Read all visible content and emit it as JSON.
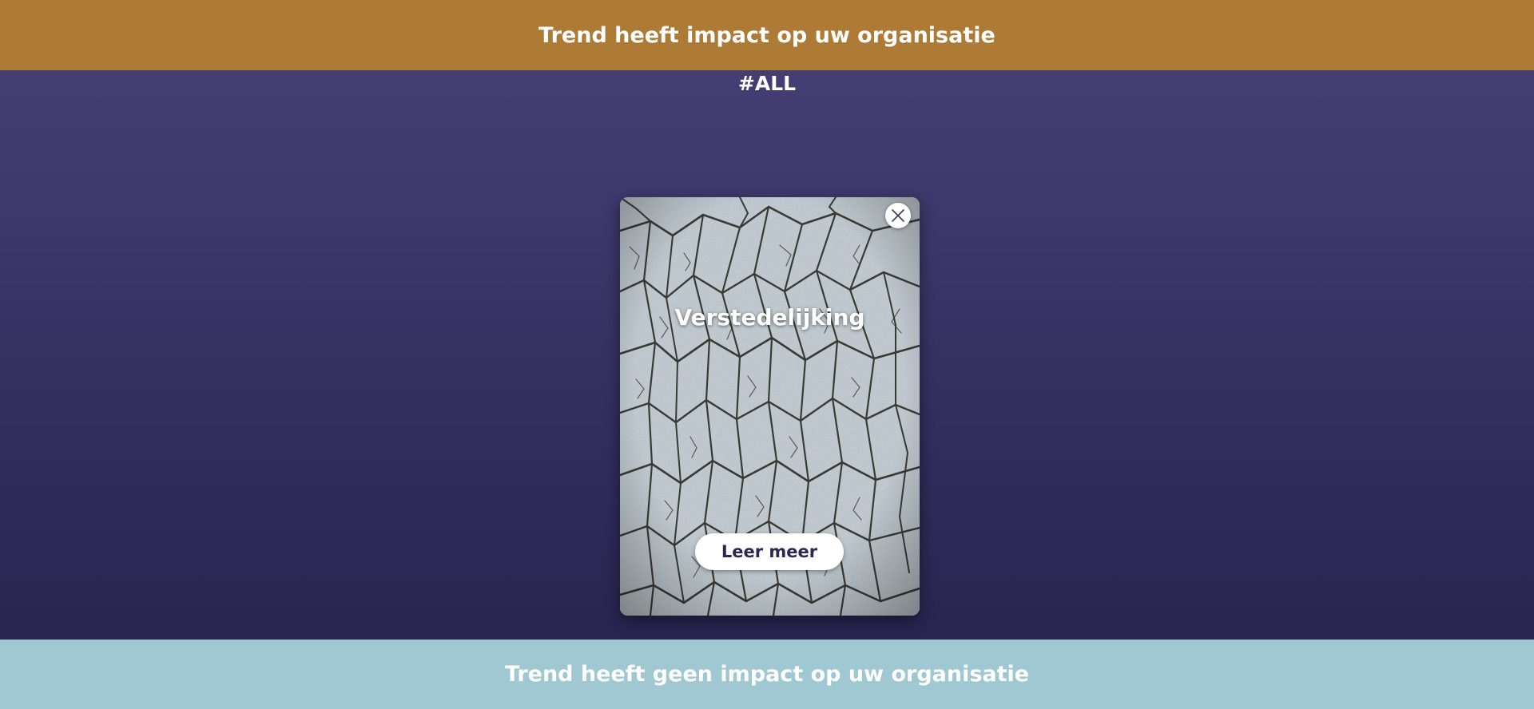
{
  "top_zone": {
    "label": "Trend heeft impact op uw organisatie",
    "color": "#ad7b35"
  },
  "bottom_zone": {
    "label": "Trend heeft geen impact op uw organisatie",
    "color": "#9fc8d2"
  },
  "filter_tag": "#ALL",
  "card": {
    "title": "Verstedelijking",
    "image": "cracked-dry-earth",
    "close_icon": "close-icon",
    "button_label": "Leer meer"
  },
  "colors": {
    "background_top": "#474276",
    "background_bottom": "#27214c",
    "button_text": "#2c2750"
  }
}
